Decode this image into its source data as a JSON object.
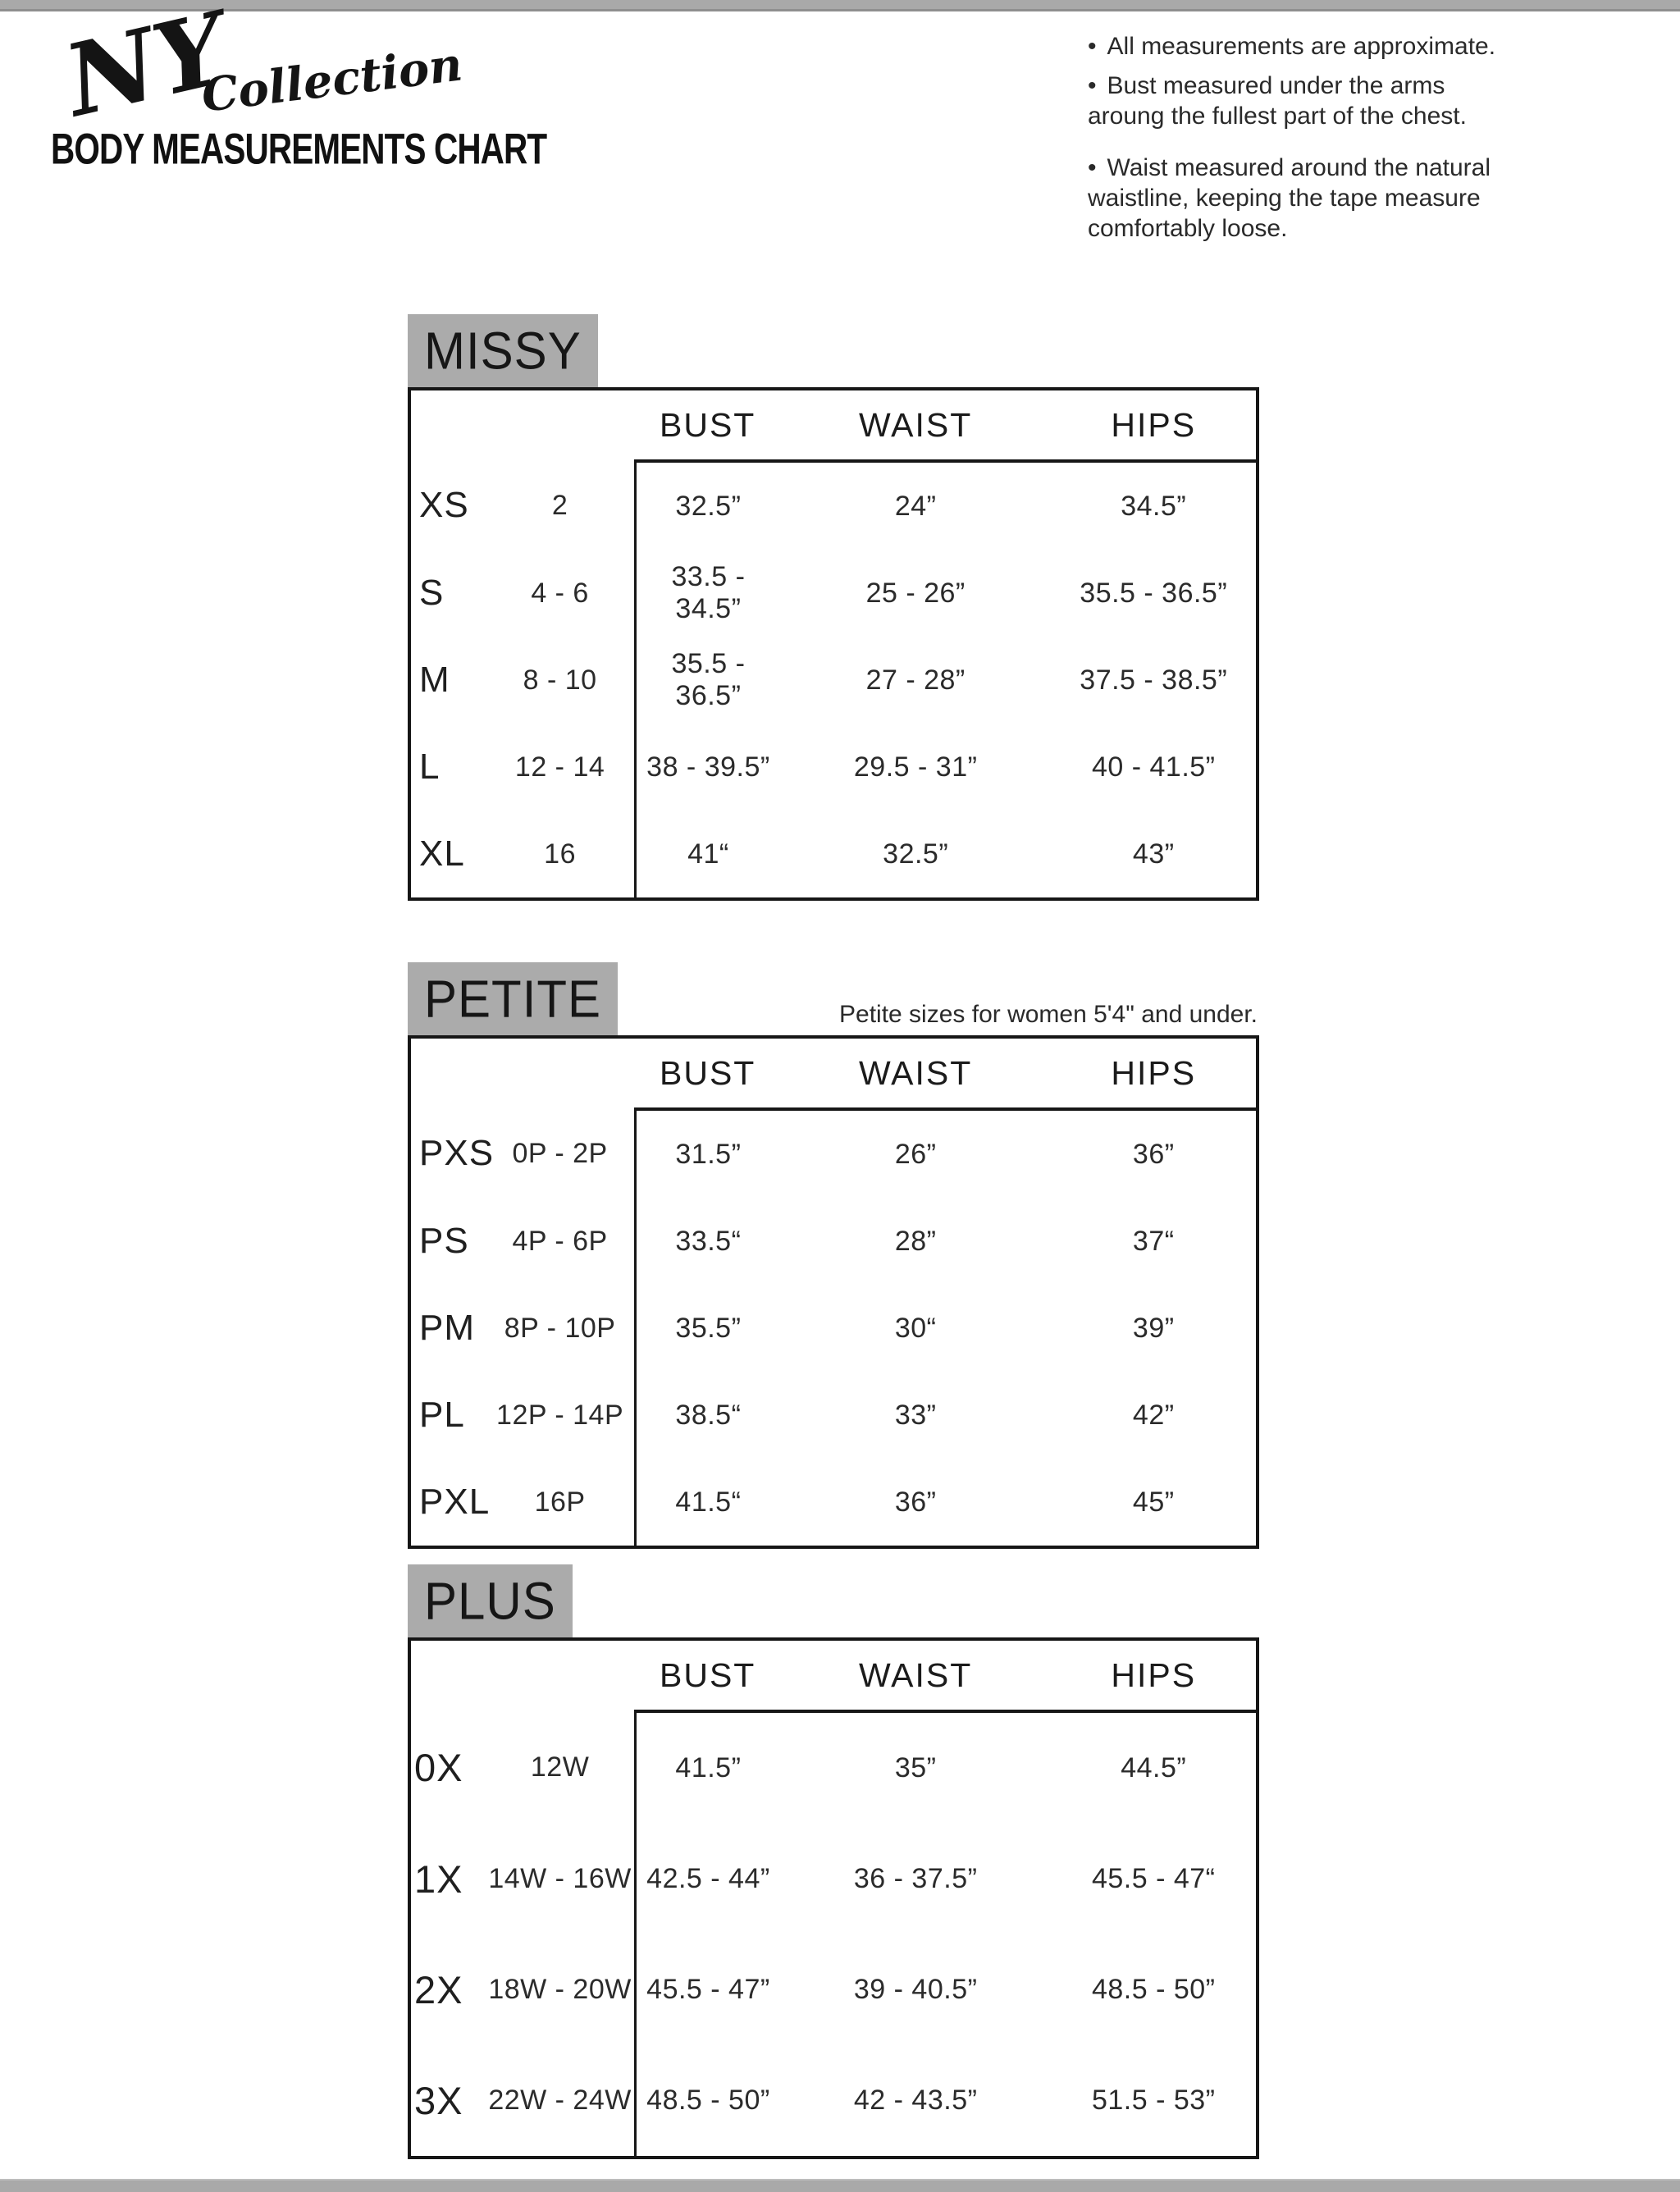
{
  "brand": {
    "ny": "NY",
    "collection": "Collection"
  },
  "title": "BODY MEASUREMENTS CHART",
  "bullet_char": "•",
  "notes": [
    "All measurements are approximate.",
    "Bust measured under the arms\naroung the fullest part of the chest.",
    "Waist measured around the natural\nwaistline, keeping the tape measure\ncomfortably loose."
  ],
  "table_columns": [
    "BUST",
    "WAIST",
    "HIPS"
  ],
  "sections": [
    {
      "label": "MISSY",
      "note": "",
      "rows": [
        {
          "size": "XS",
          "range": "2",
          "bust": "32.5”",
          "waist": "24”",
          "hips": "34.5”"
        },
        {
          "size": "S",
          "range": "4 - 6",
          "bust": "33.5 - 34.5”",
          "waist": "25 - 26”",
          "hips": "35.5 - 36.5”"
        },
        {
          "size": "M",
          "range": "8 - 10",
          "bust": "35.5 - 36.5”",
          "waist": "27 - 28”",
          "hips": "37.5 - 38.5”"
        },
        {
          "size": "L",
          "range": "12 - 14",
          "bust": "38 - 39.5”",
          "waist": "29.5 - 31”",
          "hips": "40 - 41.5”"
        },
        {
          "size": "XL",
          "range": "16",
          "bust": "41“",
          "waist": "32.5”",
          "hips": "43”"
        }
      ]
    },
    {
      "label": "PETITE",
      "note": "Petite sizes for women 5'4\" and under.",
      "rows": [
        {
          "size": "PXS",
          "range": "0P - 2P",
          "bust": "31.5”",
          "waist": "26”",
          "hips": "36”"
        },
        {
          "size": "PS",
          "range": "4P - 6P",
          "bust": "33.5“",
          "waist": "28”",
          "hips": "37“"
        },
        {
          "size": "PM",
          "range": "8P - 10P",
          "bust": "35.5”",
          "waist": "30“",
          "hips": "39”"
        },
        {
          "size": "PL",
          "range": "12P - 14P",
          "bust": "38.5“",
          "waist": "33”",
          "hips": "42”"
        },
        {
          "size": "PXL",
          "range": "16P",
          "bust": "41.5“",
          "waist": "36”",
          "hips": "45”"
        }
      ]
    },
    {
      "label": "PLUS",
      "note": "",
      "rows": [
        {
          "size": "0X",
          "range": "12W",
          "bust": "41.5”",
          "waist": "35”",
          "hips": "44.5”"
        },
        {
          "size": "1X",
          "range": "14W - 16W",
          "bust": "42.5 - 44”",
          "waist": "36 - 37.5”",
          "hips": "45.5 - 47“"
        },
        {
          "size": "2X",
          "range": "18W - 20W",
          "bust": "45.5 - 47”",
          "waist": "39 - 40.5”",
          "hips": "48.5 - 50”"
        },
        {
          "size": "3X",
          "range": "22W - 24W",
          "bust": "48.5 - 50”",
          "waist": "42 - 43.5”",
          "hips": "51.5 - 53”"
        }
      ]
    }
  ]
}
